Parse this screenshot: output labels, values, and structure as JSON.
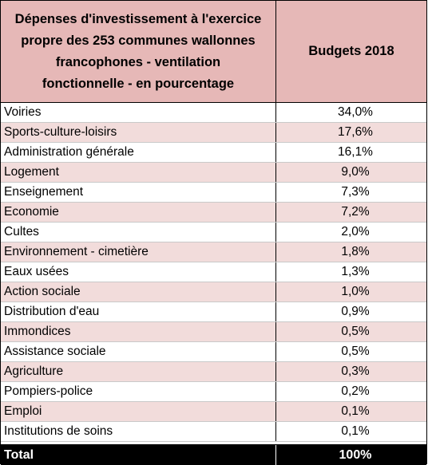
{
  "header": {
    "title_lines": [
      "Dépenses d'investissement à l'exercice",
      "propre des 253 communes wallonnes",
      "francophones - ventilation",
      "fonctionnelle - en pourcentage"
    ],
    "column": "Budgets 2018"
  },
  "rows": [
    {
      "label": "Voiries",
      "value": "34,0%"
    },
    {
      "label": "Sports-culture-loisirs",
      "value": "17,6%"
    },
    {
      "label": "Administration générale",
      "value": "16,1%"
    },
    {
      "label": "Logement",
      "value": "9,0%"
    },
    {
      "label": "Enseignement",
      "value": "7,3%"
    },
    {
      "label": "Economie",
      "value": "7,2%"
    },
    {
      "label": "Cultes",
      "value": "2,0%"
    },
    {
      "label": "Environnement - cimetière",
      "value": "1,8%"
    },
    {
      "label": "Eaux usées",
      "value": "1,3%"
    },
    {
      "label": "Action sociale",
      "value": "1,0%"
    },
    {
      "label": "Distribution d'eau",
      "value": "0,9%"
    },
    {
      "label": "Immondices",
      "value": "0,5%"
    },
    {
      "label": "Assistance sociale",
      "value": "0,5%"
    },
    {
      "label": "Agriculture",
      "value": "0,3%"
    },
    {
      "label": "Pompiers-police",
      "value": "0,2%"
    },
    {
      "label": "Emploi",
      "value": "0,1%"
    },
    {
      "label": "Institutions de soins",
      "value": "0,1%"
    }
  ],
  "total": {
    "label": "Total",
    "value": "100%"
  },
  "colors": {
    "header_bg": "#e6b8b7",
    "alt_row_bg": "#f2dcdb",
    "total_bg": "#000000"
  }
}
